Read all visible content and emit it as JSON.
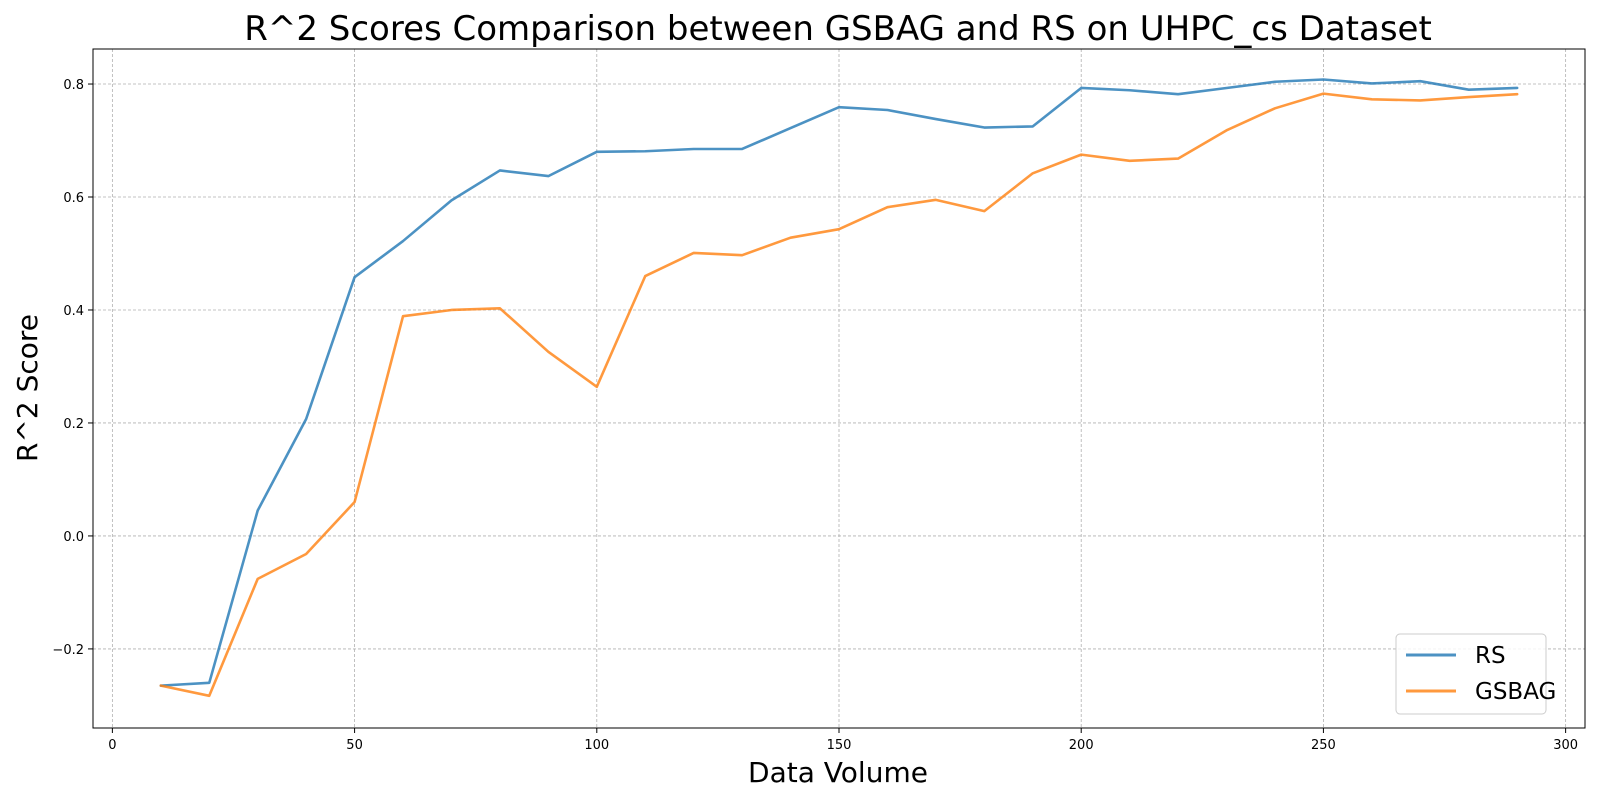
{
  "chart_data": {
    "type": "line",
    "title": "R^2 Scores Comparison between GSBAG and RS on UHPC_cs Dataset",
    "xlabel": "Data Volume",
    "ylabel": "R^2 Score",
    "xlim": [
      -4,
      304
    ],
    "ylim": [
      -0.34,
      0.862
    ],
    "xticks": [
      0,
      50,
      100,
      150,
      200,
      250,
      300
    ],
    "yticks": [
      -0.2,
      0.0,
      0.2,
      0.4,
      0.6,
      0.8
    ],
    "xtick_labels": [
      "0",
      "50",
      "100",
      "150",
      "200",
      "250",
      "300"
    ],
    "ytick_labels": [
      "−0.2",
      "0.0",
      "0.2",
      "0.4",
      "0.6",
      "0.8"
    ],
    "grid": true,
    "legend_position": "lower-right",
    "x": [
      10,
      20,
      30,
      40,
      50,
      60,
      70,
      80,
      90,
      100,
      110,
      120,
      130,
      140,
      150,
      160,
      170,
      180,
      190,
      200,
      210,
      220,
      230,
      240,
      250,
      260,
      270,
      280,
      290
    ],
    "series": [
      {
        "name": "RS",
        "color": "#1f77b4",
        "values": [
          -0.265,
          -0.26,
          0.045,
          0.207,
          0.458,
          0.522,
          0.594,
          0.647,
          0.637,
          0.68,
          0.681,
          0.685,
          0.685,
          0.722,
          0.759,
          0.754,
          0.738,
          0.723,
          0.725,
          0.793,
          0.789,
          0.782,
          0.793,
          0.804,
          0.808,
          0.801,
          0.805,
          0.79,
          0.793
        ]
      },
      {
        "name": "GSBAG",
        "color": "#ff7f0e",
        "values": [
          -0.265,
          -0.283,
          -0.076,
          -0.032,
          0.06,
          0.389,
          0.4,
          0.403,
          0.326,
          0.264,
          0.46,
          0.501,
          0.497,
          0.528,
          0.543,
          0.582,
          0.595,
          0.575,
          0.642,
          0.675,
          0.664,
          0.668,
          0.718,
          0.757,
          0.783,
          0.773,
          0.771,
          0.777,
          0.782
        ]
      }
    ]
  }
}
